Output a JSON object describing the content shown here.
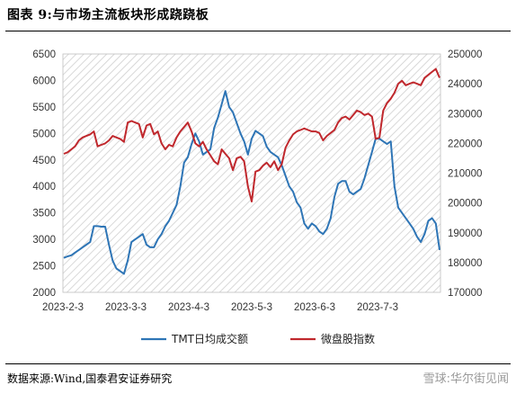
{
  "header": {
    "title": "图表 9:与市场主流板块形成跷跷板"
  },
  "footer": {
    "source": "数据来源:Wind,国泰君安证券研究",
    "watermark": "雪球:华尔街见闻"
  },
  "chart_data": {
    "type": "line",
    "title": "图表 9:与市场主流板块形成跷跷板",
    "x_tick_labels": [
      "2023-2-3",
      "2023-3-3",
      "2023-4-3",
      "2023-5-3",
      "2023-6-3",
      "2023-7-3"
    ],
    "y_left": {
      "lim": [
        2000,
        6500
      ],
      "ticks": [
        2000,
        2500,
        3000,
        3500,
        4000,
        4500,
        5000,
        5500,
        6000,
        6500
      ]
    },
    "y_right": {
      "lim": [
        170000,
        250000
      ],
      "ticks": [
        170000,
        180000,
        190000,
        200000,
        210000,
        220000,
        230000,
        240000,
        250000
      ]
    },
    "grid": false,
    "background": "hatched",
    "legend_position": "bottom",
    "colors": {
      "tmt": "#2E75B6",
      "weipan": "#C0282D"
    },
    "series": [
      {
        "name": "TMT日均成交额",
        "axis": "left",
        "values": [
          2650,
          2680,
          2700,
          2750,
          2800,
          2850,
          2900,
          2950,
          3250,
          3250,
          3240,
          3240,
          2900,
          2600,
          2450,
          2400,
          2350,
          2600,
          2950,
          3000,
          3050,
          3100,
          2900,
          2850,
          2850,
          3000,
          3100,
          3250,
          3350,
          3500,
          3650,
          4000,
          4450,
          4550,
          4800,
          5000,
          4850,
          4600,
          4650,
          4700,
          5100,
          5300,
          5550,
          5800,
          5500,
          5400,
          5200,
          5000,
          4850,
          4600,
          4900,
          5050,
          5000,
          4950,
          4750,
          4650,
          4600,
          4550,
          4400,
          4200,
          4000,
          3900,
          3700,
          3600,
          3300,
          3200,
          3300,
          3250,
          3150,
          3100,
          3200,
          3400,
          3800,
          4050,
          4100,
          4100,
          3900,
          3850,
          3900,
          3950,
          4150,
          4400,
          4650,
          4900,
          4900,
          4850,
          4800,
          4850,
          4000,
          3600,
          3500,
          3400,
          3300,
          3200,
          3050,
          2950,
          3100,
          3350,
          3400,
          3300,
          2800
        ]
      },
      {
        "name": "微盘股指数",
        "axis": "right",
        "values": [
          216500,
          217000,
          218000,
          219000,
          221000,
          222000,
          222500,
          223000,
          224000,
          219000,
          219500,
          220000,
          221000,
          222500,
          222000,
          221500,
          220500,
          227000,
          227500,
          227000,
          226500,
          222000,
          226000,
          226500,
          223000,
          224000,
          220000,
          218000,
          219500,
          219000,
          222000,
          224000,
          225500,
          227000,
          224000,
          220000,
          219000,
          220500,
          218000,
          216000,
          214000,
          213000,
          218000,
          216500,
          215000,
          211000,
          215000,
          215500,
          214000,
          205500,
          200500,
          210500,
          211000,
          212500,
          213500,
          212000,
          214000,
          211000,
          213000,
          218500,
          221000,
          223000,
          224000,
          224500,
          225000,
          224500,
          224000,
          224000,
          223500,
          221000,
          222500,
          223500,
          224500,
          227000,
          228500,
          229000,
          228000,
          229500,
          231000,
          230500,
          229500,
          230000,
          229000,
          221500,
          222000,
          231000,
          233500,
          235000,
          237000,
          240000,
          241000,
          239500,
          240000,
          240500,
          240000,
          239500,
          242000,
          243000,
          244000,
          245000,
          242000
        ]
      }
    ]
  }
}
